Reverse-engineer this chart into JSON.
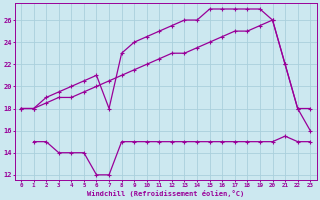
{
  "xlabel": "Windchill (Refroidissement éolien,°C)",
  "bg_color": "#cce8f0",
  "line_color": "#990099",
  "grid_color": "#aad0dc",
  "line1_x": [
    0,
    1,
    2,
    3,
    4,
    5,
    6,
    7,
    8,
    9,
    10,
    11,
    12,
    13,
    14,
    15,
    16,
    17,
    18,
    19,
    20,
    21,
    22,
    23
  ],
  "line1_y": [
    18,
    18,
    19,
    19.5,
    20,
    20.5,
    21,
    18,
    23,
    24,
    24.5,
    25,
    25.5,
    26,
    26,
    27,
    27,
    27,
    27,
    27,
    26,
    22,
    18,
    18
  ],
  "line2_x": [
    0,
    1,
    2,
    3,
    4,
    5,
    6,
    7,
    8,
    9,
    10,
    11,
    12,
    13,
    14,
    15,
    16,
    17,
    18,
    19,
    20,
    21,
    22,
    23
  ],
  "line2_y": [
    18,
    18,
    18.5,
    19,
    19,
    19.5,
    20,
    20.5,
    21,
    21.5,
    22,
    22.5,
    23,
    23,
    23.5,
    24,
    24.5,
    25,
    25,
    25.5,
    26,
    22,
    18,
    16
  ],
  "line3_x": [
    1,
    2,
    3,
    4,
    5,
    6,
    7,
    8,
    9,
    10,
    11,
    12,
    13,
    14,
    15,
    16,
    17,
    18,
    19,
    20,
    21,
    22,
    23
  ],
  "line3_y": [
    15,
    15,
    14,
    14,
    14,
    12,
    12,
    15,
    15,
    15,
    15,
    15,
    15,
    15,
    15,
    15,
    15,
    15,
    15,
    15,
    15.5,
    15,
    15
  ],
  "xlim": [
    -0.5,
    23.5
  ],
  "ylim": [
    11.5,
    27.5
  ],
  "yticks": [
    12,
    14,
    16,
    18,
    20,
    22,
    24,
    26
  ],
  "xticks": [
    0,
    1,
    2,
    3,
    4,
    5,
    6,
    7,
    8,
    9,
    10,
    11,
    12,
    13,
    14,
    15,
    16,
    17,
    18,
    19,
    20,
    21,
    22,
    23
  ]
}
